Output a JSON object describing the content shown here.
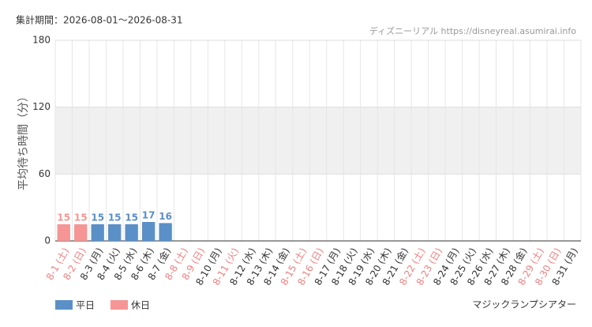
{
  "chart_data": {
    "type": "bar",
    "header": "集計期間：2026-08-01～2026-08-31",
    "source": "ディズニーリアル https://disneyreal.asumirai.info",
    "ylabel": "平均待ち時間（分）",
    "footer": "マジックランプシアター",
    "categories": [
      "8-1 (土)",
      "8-2 (日)",
      "8-3 (月)",
      "8-4 (火)",
      "8-5 (水)",
      "8-6 (木)",
      "8-7 (金)",
      "8-8 (土)",
      "8-9 (日)",
      "8-10 (月)",
      "8-11 (火)",
      "8-12 (水)",
      "8-13 (木)",
      "8-14 (金)",
      "8-15 (土)",
      "8-16 (日)",
      "8-17 (月)",
      "8-18 (火)",
      "8-19 (水)",
      "8-20 (木)",
      "8-21 (金)",
      "8-22 (土)",
      "8-23 (日)",
      "8-24 (月)",
      "8-25 (火)",
      "8-26 (水)",
      "8-27 (木)",
      "8-28 (金)",
      "8-29 (土)",
      "8-30 (日)",
      "8-31 (月)"
    ],
    "category_colors": [
      "#f08080",
      "#f08080",
      "#333333",
      "#333333",
      "#333333",
      "#333333",
      "#333333",
      "#f08080",
      "#f08080",
      "#333333",
      "#f08080",
      "#333333",
      "#333333",
      "#333333",
      "#f08080",
      "#f08080",
      "#333333",
      "#333333",
      "#333333",
      "#333333",
      "#333333",
      "#f08080",
      "#f08080",
      "#333333",
      "#333333",
      "#333333",
      "#333333",
      "#333333",
      "#f08080",
      "#f08080",
      "#333333"
    ],
    "series": [
      {
        "name": "平日",
        "color": "#5b8fc7",
        "values": [
          null,
          null,
          15,
          15,
          15,
          17,
          16,
          null,
          null,
          null,
          null,
          null,
          null,
          null,
          null,
          null,
          null,
          null,
          null,
          null,
          null,
          null,
          null,
          null,
          null,
          null,
          null,
          null,
          null,
          null,
          null
        ]
      },
      {
        "name": "休日",
        "color": "#f59595",
        "values": [
          15,
          15,
          null,
          null,
          null,
          null,
          null,
          null,
          null,
          null,
          null,
          null,
          null,
          null,
          null,
          null,
          null,
          null,
          null,
          null,
          null,
          null,
          null,
          null,
          null,
          null,
          null,
          null,
          null,
          null,
          null
        ]
      }
    ],
    "ylim": [
      0,
      180
    ],
    "yticks": [
      0,
      60,
      120,
      180
    ],
    "shaded_range": [
      60,
      120
    ],
    "grid": true
  }
}
